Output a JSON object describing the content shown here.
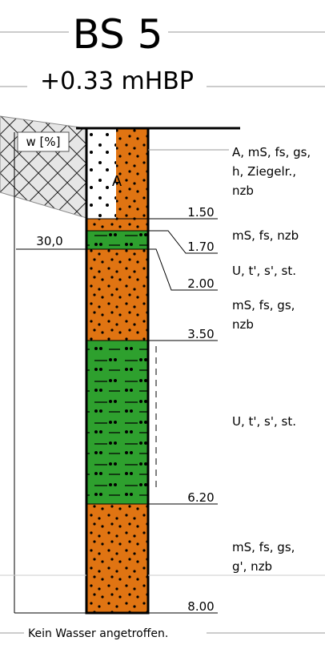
{
  "header": {
    "title": "BS 5",
    "elevation": "+0.33 mHBP"
  },
  "water_axis_label": "w [%]",
  "water_content": "30,0",
  "layers": [
    {
      "label": "A",
      "depth": "1.50",
      "description": [
        "A, mS, fs, gs,",
        "h, Ziegelr.,",
        "nzb"
      ]
    },
    {
      "depth": "1.70",
      "description": [
        "mS, fs, nzb"
      ]
    },
    {
      "depth": "2.00",
      "description": [
        "U, t', s', st."
      ]
    },
    {
      "depth": "3.50",
      "description": [
        "mS, fs, gs,",
        "nzb"
      ]
    },
    {
      "depth": "6.20",
      "description": [
        "U, t', s', st."
      ]
    },
    {
      "depth": "8.00",
      "description": [
        "mS, fs, gs,",
        "g', nzb"
      ]
    }
  ],
  "footer": "Kein Wasser angetroffen."
}
